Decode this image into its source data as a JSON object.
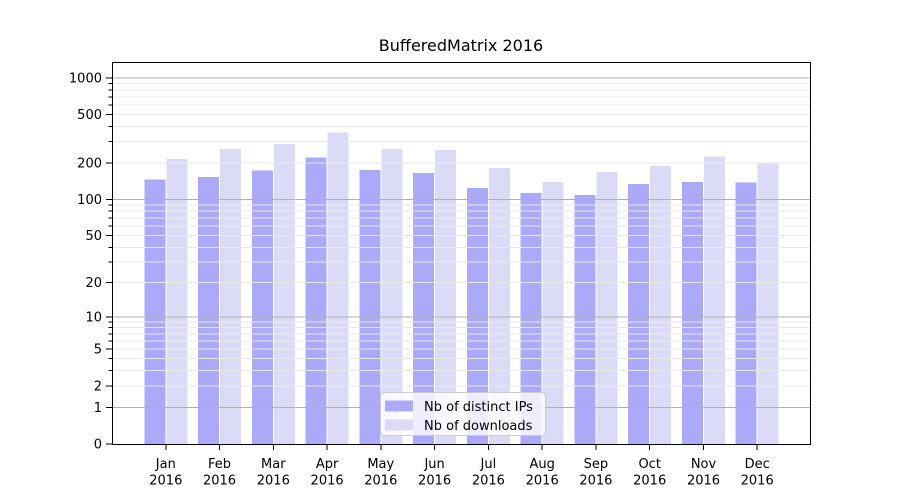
{
  "chart_data": {
    "type": "bar",
    "title": "BufferedMatrix 2016",
    "categories": [
      "Jan",
      "Feb",
      "Mar",
      "Apr",
      "May",
      "Jun",
      "Jul",
      "Aug",
      "Sep",
      "Oct",
      "Nov",
      "Dec"
    ],
    "year": "2016",
    "series": [
      {
        "name": "Nb of distinct IPs",
        "color": "#aaaaf8",
        "values": [
          146,
          153,
          173,
          222,
          175,
          165,
          124,
          113,
          109,
          134,
          140,
          138
        ]
      },
      {
        "name": "Nb of downloads",
        "color": "#dbdbf8",
        "values": [
          216,
          261,
          287,
          357,
          261,
          256,
          182,
          140,
          169,
          190,
          227,
          200
        ]
      }
    ],
    "y_axis": {
      "scale": "log1p",
      "tick_labels": [
        0,
        1,
        2,
        5,
        10,
        20,
        50,
        100,
        200,
        500,
        1000
      ],
      "major_gridlines": [
        1,
        10,
        100,
        1000
      ],
      "minor_gridlines": [
        2,
        3,
        4,
        5,
        6,
        7,
        8,
        9,
        20,
        30,
        40,
        50,
        60,
        70,
        80,
        90,
        200,
        300,
        400,
        500,
        600,
        700,
        800,
        900
      ],
      "range": [
        0,
        1000
      ]
    },
    "legend": {
      "position": "bottom-center",
      "entries": [
        "Nb of distinct IPs",
        "Nb of downloads"
      ]
    },
    "grid": true,
    "colors": {
      "major_grid": "#b0b0b0",
      "minor_grid": "#e8e8e8",
      "spine": "#000000",
      "legend_border": "#cccccc",
      "legend_bg": "rgba(255,255,255,0.8)"
    }
  }
}
